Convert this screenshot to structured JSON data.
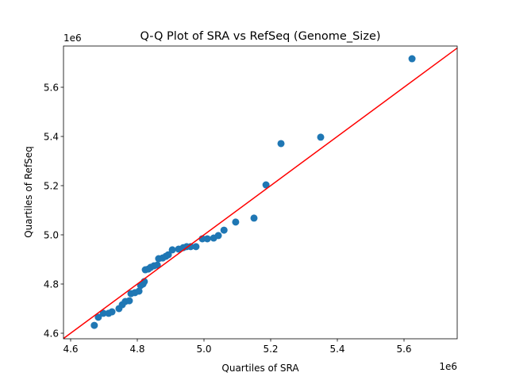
{
  "chart_data": {
    "type": "scatter",
    "title": "Q-Q Plot of SRA vs RefSeq (Genome_Size)",
    "xlabel": "Quartiles of SRA",
    "ylabel": "Quartiles of RefSeq",
    "x_offset_label": "1e6",
    "y_offset_label": "1e6",
    "xlim": [
      4.5786,
      5.7595
    ],
    "ylim": [
      4.5774,
      5.7677
    ],
    "xticks": [
      "4.6",
      "4.8",
      "5.0",
      "5.2",
      "5.4",
      "5.6"
    ],
    "yticks": [
      "4.6",
      "4.8",
      "5.0",
      "5.2",
      "5.4",
      "5.6"
    ],
    "grid": false,
    "point_color": "#1f77b4",
    "line_color": "#ff0000",
    "reference_line": {
      "x": [
        4.5786,
        5.7595
      ],
      "y": [
        4.5786,
        5.7595
      ]
    },
    "points": {
      "x": [
        4.671,
        4.683,
        4.698,
        4.714,
        4.724,
        4.745,
        4.755,
        4.764,
        4.776,
        4.781,
        4.793,
        4.805,
        4.81,
        4.817,
        4.821,
        4.824,
        4.833,
        4.84,
        4.85,
        4.86,
        4.864,
        4.876,
        4.886,
        4.893,
        4.905,
        4.924,
        4.938,
        4.948,
        4.96,
        4.976,
        4.995,
        5.01,
        5.029,
        5.043,
        5.06,
        5.095,
        5.15,
        5.186,
        5.231,
        5.35,
        5.624
      ],
      "y": [
        4.632,
        4.665,
        4.681,
        4.681,
        4.687,
        4.7,
        4.716,
        4.729,
        4.732,
        4.761,
        4.765,
        4.771,
        4.794,
        4.8,
        4.81,
        4.858,
        4.861,
        4.868,
        4.874,
        4.877,
        4.903,
        4.906,
        4.913,
        4.919,
        4.939,
        4.942,
        4.948,
        4.952,
        4.952,
        4.952,
        4.984,
        4.984,
        4.987,
        4.997,
        5.019,
        5.052,
        5.068,
        5.203,
        5.371,
        5.397,
        5.716
      ]
    }
  }
}
